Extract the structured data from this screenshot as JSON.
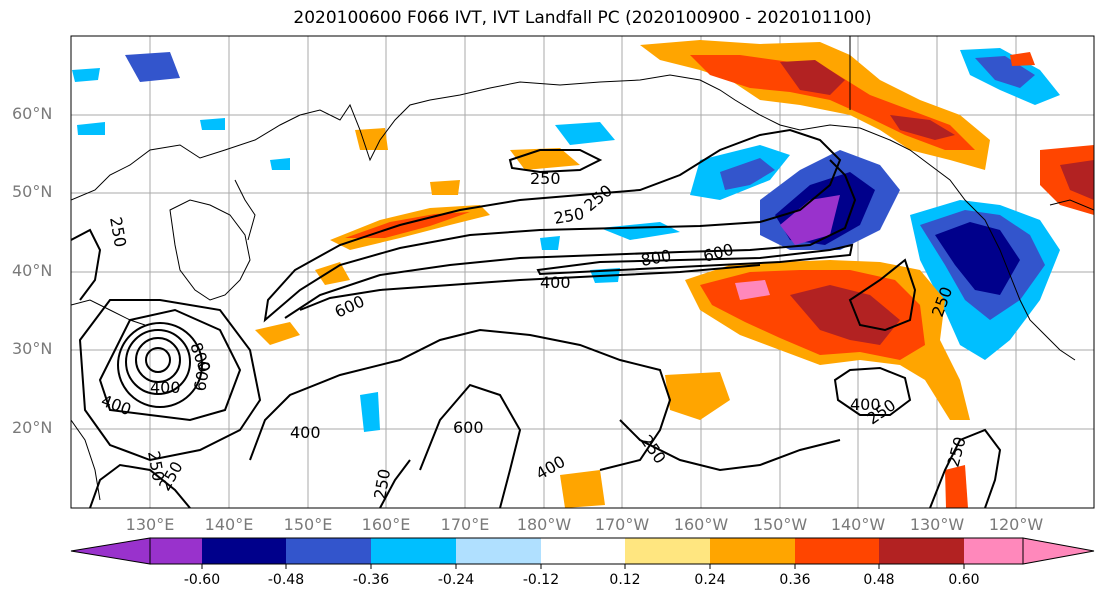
{
  "title": "2020100600 F066 IVT, IVT Landfall PC (2020100900 - 2020101100)",
  "lat_labels": [
    "60°N",
    "50°N",
    "40°N",
    "30°N",
    "20°N"
  ],
  "lon_labels": [
    "130°E",
    "140°E",
    "150°E",
    "160°E",
    "170°E",
    "180°W",
    "170°W",
    "160°W",
    "150°W",
    "140°W",
    "130°W",
    "120°W"
  ],
  "contour_labels": [
    "250",
    "250",
    "250",
    "250",
    "250",
    "250",
    "250",
    "250",
    "250",
    "250",
    "250",
    "400",
    "400",
    "400",
    "400",
    "400",
    "600",
    "600",
    "600",
    "600",
    "800",
    "800",
    "400"
  ],
  "colorbar": {
    "colors": [
      "#9932cc",
      "#00008b",
      "#3355cc",
      "#00bfff",
      "#b0e0ff",
      "#ffffff",
      "#ffe680",
      "#ffa500",
      "#ff4500",
      "#b22222",
      "#ff88bb"
    ],
    "tick_labels": [
      "-0.60",
      "-0.48",
      "-0.36",
      "-0.24",
      "-0.12",
      "0.12",
      "0.24",
      "0.36",
      "0.48",
      "0.60"
    ]
  }
}
